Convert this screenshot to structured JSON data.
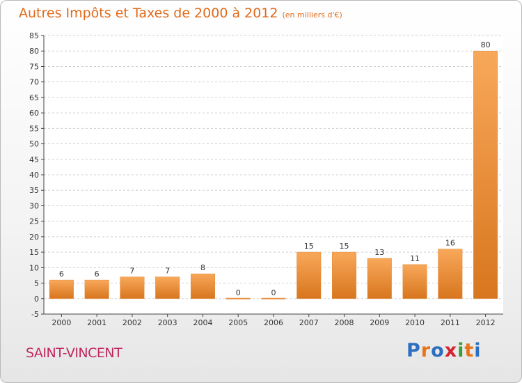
{
  "title": "Autres Impôts et Taxes de 2000 à 2012",
  "subtitle": "(en milliers d'€)",
  "place_name": "SAINT-VINCENT",
  "logo": {
    "text": "Proxiti",
    "letters": [
      "P",
      "r",
      "o",
      "x",
      "i",
      "t",
      "i"
    ]
  },
  "colors": {
    "title": "#e06a1a",
    "place": "#c02860",
    "bar_light": "#f8a85a",
    "bar_dark": "#d8761e"
  },
  "chart_data": {
    "type": "bar",
    "categories": [
      "2000",
      "2001",
      "2002",
      "2003",
      "2004",
      "2005",
      "2006",
      "2007",
      "2008",
      "2009",
      "2010",
      "2011",
      "2012"
    ],
    "values": [
      6,
      6,
      7,
      7,
      8,
      0,
      0,
      15,
      15,
      13,
      11,
      16,
      80
    ],
    "data_labels": [
      "6",
      "6",
      "7",
      "7",
      "8",
      "0",
      "0",
      "15",
      "15",
      "13",
      "11",
      "16",
      "80"
    ],
    "ylim": [
      -5,
      85
    ],
    "yticks": [
      -5,
      0,
      5,
      10,
      15,
      20,
      25,
      30,
      35,
      40,
      45,
      50,
      55,
      60,
      65,
      70,
      75,
      80,
      85
    ],
    "grid": true,
    "xlabel": "",
    "ylabel": ""
  }
}
